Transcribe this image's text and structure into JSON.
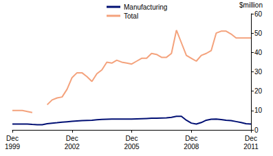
{
  "chart_data": {
    "type": "line",
    "y_label": "$million",
    "categories": [
      "Dec 1999",
      null,
      null,
      null,
      null,
      null,
      null,
      null,
      null,
      null,
      null,
      null,
      "Dec 2002",
      null,
      null,
      null,
      null,
      null,
      null,
      null,
      null,
      null,
      null,
      null,
      "Dec 2005",
      null,
      null,
      null,
      null,
      null,
      null,
      null,
      null,
      null,
      null,
      null,
      "Dec 2008",
      null,
      null,
      null,
      null,
      null,
      null,
      null,
      null,
      null,
      null,
      null,
      "Dec 2011"
    ],
    "series": [
      {
        "name": "Manufacturing",
        "color": "#000f73",
        "values": [
          3,
          3,
          3,
          3,
          2.8,
          2.7,
          2.7,
          3.2,
          3.5,
          3.7,
          4,
          4.2,
          4.4,
          4.6,
          4.8,
          4.9,
          5,
          5.2,
          5.4,
          5.5,
          5.6,
          5.6,
          5.6,
          5.6,
          5.6,
          5.7,
          5.8,
          5.9,
          6,
          6,
          6.1,
          6.2,
          6.5,
          7,
          7,
          5,
          3.5,
          3,
          3.8,
          5,
          5.5,
          5.6,
          5.3,
          5,
          4.8,
          4.3,
          3.8,
          3.2,
          3
        ]
      },
      {
        "name": "Total",
        "color": "#f4a27c",
        "values": [
          10,
          10,
          10,
          9.5,
          9,
          null,
          null,
          13,
          15.5,
          16.5,
          17,
          21,
          27,
          29.5,
          29.5,
          27.5,
          25,
          29,
          31,
          35,
          34.5,
          36,
          35,
          34.5,
          34,
          35.5,
          37,
          37,
          39.5,
          39,
          37.5,
          37.5,
          39.5,
          51.5,
          45,
          38.5,
          37,
          35.5,
          38.5,
          39.5,
          41,
          50,
          51,
          51,
          49.5,
          47.5,
          47.5,
          47.5,
          47.5
        ]
      }
    ],
    "ylim": [
      0,
      60
    ],
    "yticks": [
      0,
      10,
      20,
      30,
      40,
      50,
      60
    ],
    "grid": false,
    "legend": "top"
  }
}
